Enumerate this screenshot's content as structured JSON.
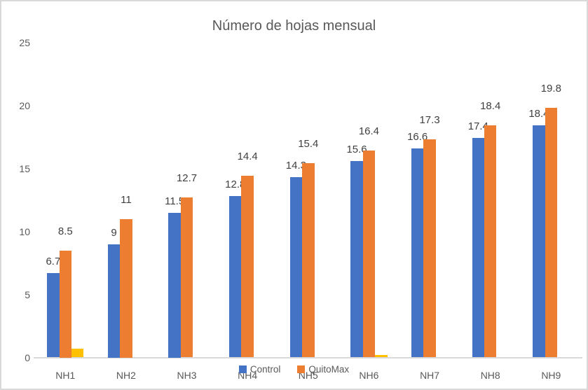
{
  "chart_data": {
    "type": "bar",
    "title": "Número de hojas mensual",
    "categories": [
      "NH1",
      "NH2",
      "NH3",
      "NH4",
      "NH5",
      "NH6",
      "NH7",
      "NH8",
      "NH9"
    ],
    "series": [
      {
        "name": "Control",
        "color": "#4472C4",
        "values": [
          6.7,
          9,
          11.5,
          12.8,
          14.3,
          15.6,
          16.6,
          17.4,
          18.4
        ],
        "data_labels": [
          "6.7",
          "9",
          "11.5",
          "12.8",
          "14.3",
          "15.6",
          "16.6",
          "17.4",
          "18.4"
        ],
        "show_labels": true,
        "in_legend": true
      },
      {
        "name": "QuitoMax",
        "color": "#ED7D31",
        "values": [
          8.5,
          11,
          12.7,
          14.4,
          15.4,
          16.4,
          17.3,
          18.4,
          19.8
        ],
        "data_labels": [
          "8.5",
          "11",
          "12.7",
          "14.4",
          "15.4",
          "16.4",
          "17.3",
          "18.4",
          "19.8"
        ],
        "show_labels": true,
        "in_legend": true
      },
      {
        "name": "",
        "color": "#FFC000",
        "values": [
          0.7,
          0,
          0,
          0,
          0,
          0.2,
          0,
          0,
          0
        ],
        "data_labels": [],
        "show_labels": false,
        "in_legend": false
      }
    ],
    "ylim": [
      0,
      25
    ],
    "yticks": [
      0,
      5,
      10,
      15,
      20,
      25
    ],
    "grid": false,
    "legend_position": "bottom-center"
  },
  "colors": {
    "control": "#4472C4",
    "quitomax": "#ED7D31",
    "extra_series": "#FFC000",
    "axis_text": "#595959",
    "data_label_text": "#404040",
    "axis_line": "#D9D9D9",
    "chart_border": "#D9D9D9",
    "background": "#FFFFFF"
  }
}
